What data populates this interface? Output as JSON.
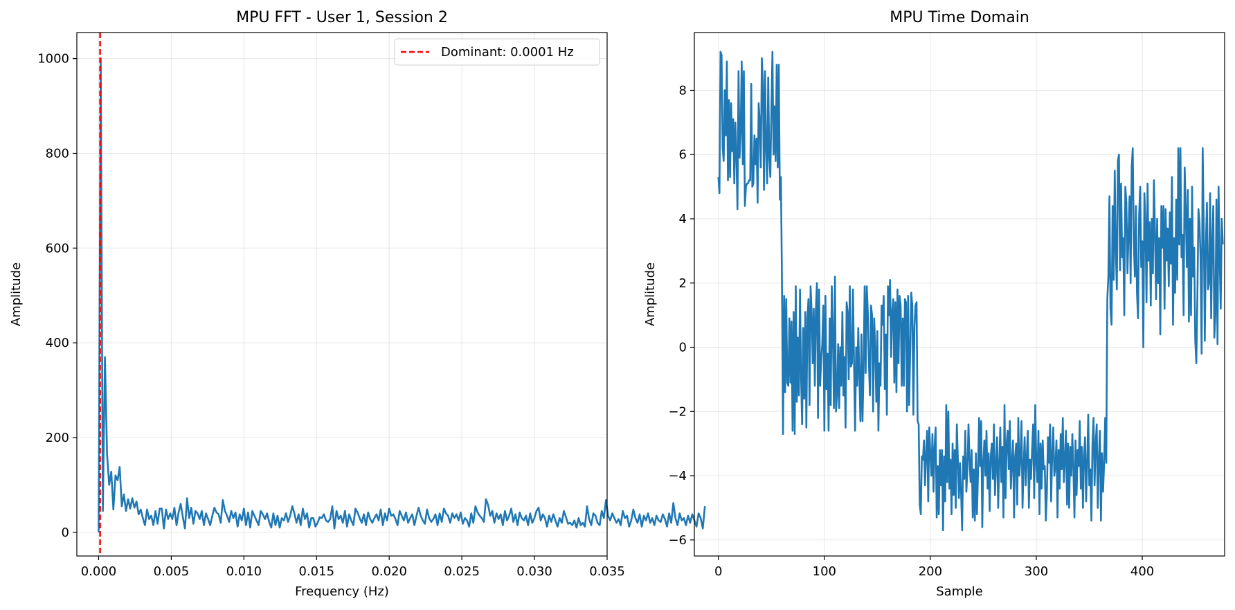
{
  "figure": {
    "background": "#ffffff"
  },
  "chart_data": [
    {
      "type": "line",
      "title": "MPU FFT - User 1, Session 2",
      "xlabel": "Frequency (Hz)",
      "ylabel": "Amplitude",
      "xlim": [
        -0.0015,
        0.035
      ],
      "ylim": [
        -50,
        1055
      ],
      "xticks": [
        0.0,
        0.005,
        0.01,
        0.015,
        0.02,
        0.025,
        0.03,
        0.035
      ],
      "xtick_labels": [
        "0.000",
        "0.005",
        "0.010",
        "0.015",
        "0.020",
        "0.025",
        "0.030",
        "0.035"
      ],
      "yticks": [
        0,
        200,
        400,
        600,
        800,
        1000
      ],
      "ytick_labels": [
        "0",
        "200",
        "400",
        "600",
        "800",
        "1000"
      ],
      "grid": true,
      "legend_position": "top-right",
      "series": [
        {
          "color": "#1f77b4",
          "x_start": 0,
          "x_step": 0.0001449,
          "values": [
            0,
            1000,
            45,
            370,
            165,
            100,
            128,
            48,
            120,
            110,
            138,
            55,
            80,
            45,
            70,
            50,
            72,
            52,
            65,
            38,
            48,
            30,
            15,
            48,
            28,
            35,
            15,
            45,
            18,
            50,
            50,
            8,
            48,
            28,
            40,
            28,
            52,
            15,
            42,
            60,
            32,
            8,
            72,
            30,
            52,
            18,
            45,
            40,
            28,
            45,
            15,
            40,
            28,
            15,
            35,
            52,
            42,
            38,
            20,
            68,
            45,
            35,
            22,
            45,
            30,
            42,
            12,
            38,
            25,
            50,
            15,
            42,
            10,
            45,
            35,
            25,
            15,
            45,
            38,
            28,
            40,
            22,
            10,
            40,
            15,
            35,
            10,
            30,
            25,
            40,
            22,
            35,
            55,
            40,
            20,
            38,
            15,
            50,
            28,
            40,
            10,
            30,
            30,
            12,
            20,
            32,
            30,
            38,
            25,
            22,
            28,
            55,
            8,
            45,
            28,
            35,
            20,
            45,
            12,
            38,
            25,
            15,
            50,
            42,
            30,
            20,
            38,
            15,
            42,
            28,
            20,
            30,
            38,
            25,
            48,
            15,
            40,
            25,
            50,
            35,
            38,
            28,
            15,
            45,
            35,
            25,
            42,
            20,
            30,
            38,
            15,
            35,
            52,
            35,
            25,
            18,
            48,
            30,
            22,
            28,
            38,
            15,
            40,
            22,
            50,
            40,
            35,
            20,
            40,
            30,
            38,
            25,
            42,
            18,
            30,
            25,
            12,
            40,
            20,
            55,
            42,
            35,
            30,
            22,
            70,
            58,
            35,
            45,
            20,
            40,
            28,
            38,
            15,
            45,
            25,
            35,
            50,
            22,
            38,
            15,
            42,
            30,
            25,
            35,
            15,
            40,
            20,
            30,
            45,
            52,
            25,
            38,
            30,
            12,
            35,
            22,
            38,
            25,
            12,
            30,
            20,
            45,
            32,
            18,
            20,
            15,
            25,
            10,
            30,
            15,
            20,
            12,
            55,
            28,
            15,
            40,
            35,
            20,
            15,
            45,
            30,
            68,
            35,
            25,
            40,
            30,
            20,
            28,
            15,
            45,
            30,
            35,
            12,
            25,
            48,
            30,
            20,
            38,
            12,
            35,
            25,
            40,
            20,
            30,
            15,
            35,
            25,
            22,
            38,
            28,
            12,
            40,
            20,
            62,
            30,
            15,
            40,
            25,
            30,
            15,
            35,
            20,
            38,
            25,
            12,
            40,
            30,
            8,
            55
          ]
        }
      ],
      "reference_lines": [
        {
          "orientation": "vertical",
          "x": 0.0001,
          "color": "#ff0000",
          "style": "dashed",
          "legend_label": "Dominant: 0.0001 Hz"
        }
      ]
    },
    {
      "type": "line",
      "title": "MPU Time Domain",
      "xlabel": "Sample",
      "ylabel": "Amplitude",
      "xlim": [
        -22.7,
        477.7
      ],
      "ylim": [
        -6.5,
        9.8
      ],
      "xticks": [
        0,
        100,
        200,
        300,
        400
      ],
      "xtick_labels": [
        "0",
        "100",
        "200",
        "300",
        "400"
      ],
      "yticks": [
        -6,
        -4,
        -2,
        0,
        2,
        4,
        6,
        8
      ],
      "ytick_labels": [
        "−6",
        "−4",
        "−2",
        "0",
        "2",
        "4",
        "6",
        "8"
      ],
      "grid": true,
      "series": [
        {
          "color": "#1f77b4",
          "x_start": 0,
          "x_step": 1,
          "values": [
            5.3,
            4.8,
            9.2,
            9.1,
            6.2,
            5.8,
            8.0,
            6.6,
            8.9,
            5.2,
            7.7,
            5.3,
            7.6,
            6.1,
            7.1,
            5.1,
            7.0,
            6.0,
            4.3,
            8.6,
            5.9,
            6.7,
            8.9,
            5.7,
            8.6,
            4.4,
            5.0,
            5.1,
            5.1,
            5.2,
            5.2,
            8.2,
            5.0,
            5.1,
            6.6,
            5.7,
            6.5,
            4.5,
            7.6,
            7.0,
            5.6,
            9.0,
            8.2,
            4.9,
            8.6,
            6.2,
            5.1,
            8.4,
            5.9,
            5.3,
            7.4,
            9.2,
            6.0,
            7.5,
            5.8,
            8.8,
            5.6,
            8.8,
            4.6,
            5.3,
            2.0,
            -2.7,
            1.6,
            -1.4,
            1.5,
            -1.1,
            -1.2,
            0.9,
            -1.1,
            0.8,
            -2.6,
            1.1,
            -2.7,
            1.9,
            -1.7,
            0.3,
            -1.5,
            1.8,
            -0.9,
            -2.4,
            0.6,
            -1.6,
            1.1,
            -2.5,
            0.9,
            1.5,
            -1.8,
            1.9,
            1.1,
            -0.5,
            1.2,
            -1.2,
            1.2,
            2.0,
            -2.2,
            1.8,
            -1.2,
            -0.4,
            0.1,
            1.3,
            -2.6,
            1.6,
            -1.3,
            -0.2,
            -2.6,
            0.9,
            -1.8,
            1.9,
            0.5,
            -1.9,
            2.2,
            -2.0,
            -1.5,
            0.1,
            -1.9,
            0.0,
            -1.2,
            1.1,
            -1.5,
            -0.3,
            -2.5,
            1.4,
            1.1,
            -1.0,
            1.9,
            -0.6,
            -0.5,
            1.8,
            -0.5,
            -2.6,
            0.0,
            -1.2,
            0.6,
            -0.9,
            -2.3,
            0.4,
            -2.3,
            -0.7,
            1.9,
            -0.8,
            1.9,
            1.1,
            -0.5,
            -1.5,
            1.3,
            1.0,
            -2.0,
            0.9,
            0.0,
            -1.7,
            0.5,
            -2.6,
            -0.5,
            -1.2,
            1.3,
            0.7,
            1.6,
            -1.3,
            0.4,
            -2.1,
            1.9,
            1.0,
            2.1,
            -0.3,
            1.1,
            1.5,
            -1.1,
            1.4,
            -1.4,
            1.8,
            -0.5,
            1.6,
            1.3,
            -1.2,
            0.9,
            -1.2,
            1.5,
            1.4,
            -2.0,
            1.6,
            -1.8,
            -0.1,
            1.7,
            1.3,
            -2.1,
            0.6,
            1.3,
            1.4,
            -2.3,
            -2.4,
            -4.9,
            -5.2,
            -3.4,
            -3.5,
            -2.9,
            -4.3,
            -3.3,
            -2.6,
            -4.8,
            -2.5,
            -3.3,
            -4.0,
            -2.7,
            -4.5,
            -3.1,
            -2.5,
            -5.3,
            -3.7,
            -5.2,
            -3.2,
            -4.3,
            -3.2,
            -5.7,
            -3.4,
            -4.8,
            -1.8,
            -4.2,
            -2.0,
            -4.4,
            -3.5,
            -5.2,
            -3.0,
            -4.6,
            -3.2,
            -5.0,
            -2.4,
            -3.5,
            -4.7,
            -3.6,
            -4.5,
            -5.7,
            -3.4,
            -4.1,
            -2.6,
            -4.5,
            -3.8,
            -2.4,
            -3.5,
            -4.2,
            -3.2,
            -5.3,
            -3.8,
            -5.4,
            -3.3,
            -5.2,
            -3.9,
            -2.2,
            -3.7,
            -2.3,
            -5.6,
            -3.6,
            -2.9,
            -4.0,
            -2.6,
            -4.4,
            -3.3,
            -5.1,
            -3.4,
            -3.0,
            -4.1,
            -2.4,
            -4.6,
            -3.7,
            -2.8,
            -5.0,
            -3.6,
            -2.5,
            -4.2,
            -3.1,
            -5.3,
            -1.8,
            -4.7,
            -3.0,
            -2.6,
            -3.8,
            -2.3,
            -4.4,
            -3.6,
            -2.9,
            -5.3,
            -3.4,
            -3.0,
            -4.9,
            -2.2,
            -4.0,
            -3.5,
            -2.3,
            -5.0,
            -3.7,
            -2.8,
            -4.3,
            -3.4,
            -2.6,
            -5.0,
            -3.5,
            -4.1,
            -3.2,
            -2.4,
            -4.7,
            -1.8,
            -3.6,
            -4.2,
            -2.6,
            -5.2,
            -3.0,
            -4.4,
            -2.9,
            -3.8,
            -3.7,
            -5.4,
            -4.5,
            -2.8,
            -3.6,
            -2.4,
            -4.8,
            -3.3,
            -2.5,
            -4.0,
            -3.7,
            -2.9,
            -5.3,
            -3.2,
            -4.4,
            -2.7,
            -3.8,
            -2.2,
            -4.2,
            -3.5,
            -2.6,
            -4.9,
            -3.0,
            -5.0,
            -3.1,
            -4.0,
            -2.7,
            -3.8,
            -5.3,
            -2.9,
            -4.6,
            -3.2,
            -3.7,
            -2.3,
            -4.4,
            -3.1,
            -5.0,
            -3.4,
            -2.8,
            -4.8,
            -3.6,
            -2.1,
            -4.3,
            -3.8,
            -5.4,
            -3.0,
            -2.2,
            -4.3,
            -3.0,
            -2.4,
            -5.0,
            -3.5,
            -2.6,
            -5.4,
            -3.3,
            -4.5,
            -3.6,
            -2.2,
            -3.6,
            1.5,
            2.2,
            4.7,
            1.2,
            0.7,
            4.4,
            2.1,
            5.5,
            3.0,
            1.8,
            5.8,
            6.0,
            2.4,
            5.1,
            2.8,
            3.4,
            1.0,
            5.0,
            4.5,
            2.3,
            3.5,
            4.7,
            2.0,
            5.6,
            6.2,
            3.3,
            2.2,
            4.4,
            1.7,
            0.9,
            4.1,
            5.0,
            2.5,
            3.3,
            0.0,
            4.8,
            3.9,
            1.4,
            5.1,
            2.7,
            3.9,
            1.3,
            4.0,
            2.3,
            5.2,
            3.6,
            1.5,
            4.0,
            2.0,
            3.4,
            0.4,
            4.4,
            3.1,
            4.4,
            1.2,
            4.3,
            2.7,
            3.7,
            1.9,
            4.2,
            2.6,
            5.3,
            0.7,
            3.4,
            1.7,
            4.6,
            2.1,
            6.2,
            3.2,
            6.2,
            2.8,
            3.5,
            1.0,
            5.6,
            4.3,
            2.5,
            4.9,
            0.8,
            4.0,
            1.0,
            5.0,
            2.2,
            3.1,
            0.2,
            -0.5,
            1.6,
            4.3,
            3.9,
            2.8,
            -0.2,
            6.2,
            3.8,
            0.2,
            3.2,
            4.5,
            1.8,
            2.0,
            4.8,
            0.9,
            3.3,
            4.4,
            0.3,
            1.0,
            4.6,
            0.1,
            5.0,
            2.8,
            1.2,
            4.0,
            3.2
          ]
        }
      ]
    }
  ]
}
